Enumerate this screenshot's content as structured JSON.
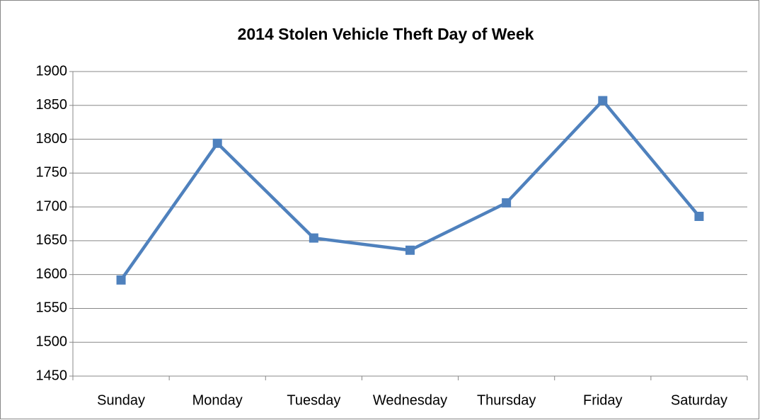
{
  "chart_data": {
    "type": "line",
    "title": "2014 Stolen Vehicle Theft Day of Week",
    "categories": [
      "Sunday",
      "Monday",
      "Tuesday",
      "Wednesday",
      "Thursday",
      "Friday",
      "Saturday"
    ],
    "values": [
      1592,
      1794,
      1654,
      1636,
      1706,
      1857,
      1686
    ],
    "color": "#4f81bd",
    "ylim": [
      1450,
      1900
    ],
    "yticks": [
      1450,
      1500,
      1550,
      1600,
      1650,
      1700,
      1750,
      1800,
      1850,
      1900
    ],
    "grid": true
  }
}
